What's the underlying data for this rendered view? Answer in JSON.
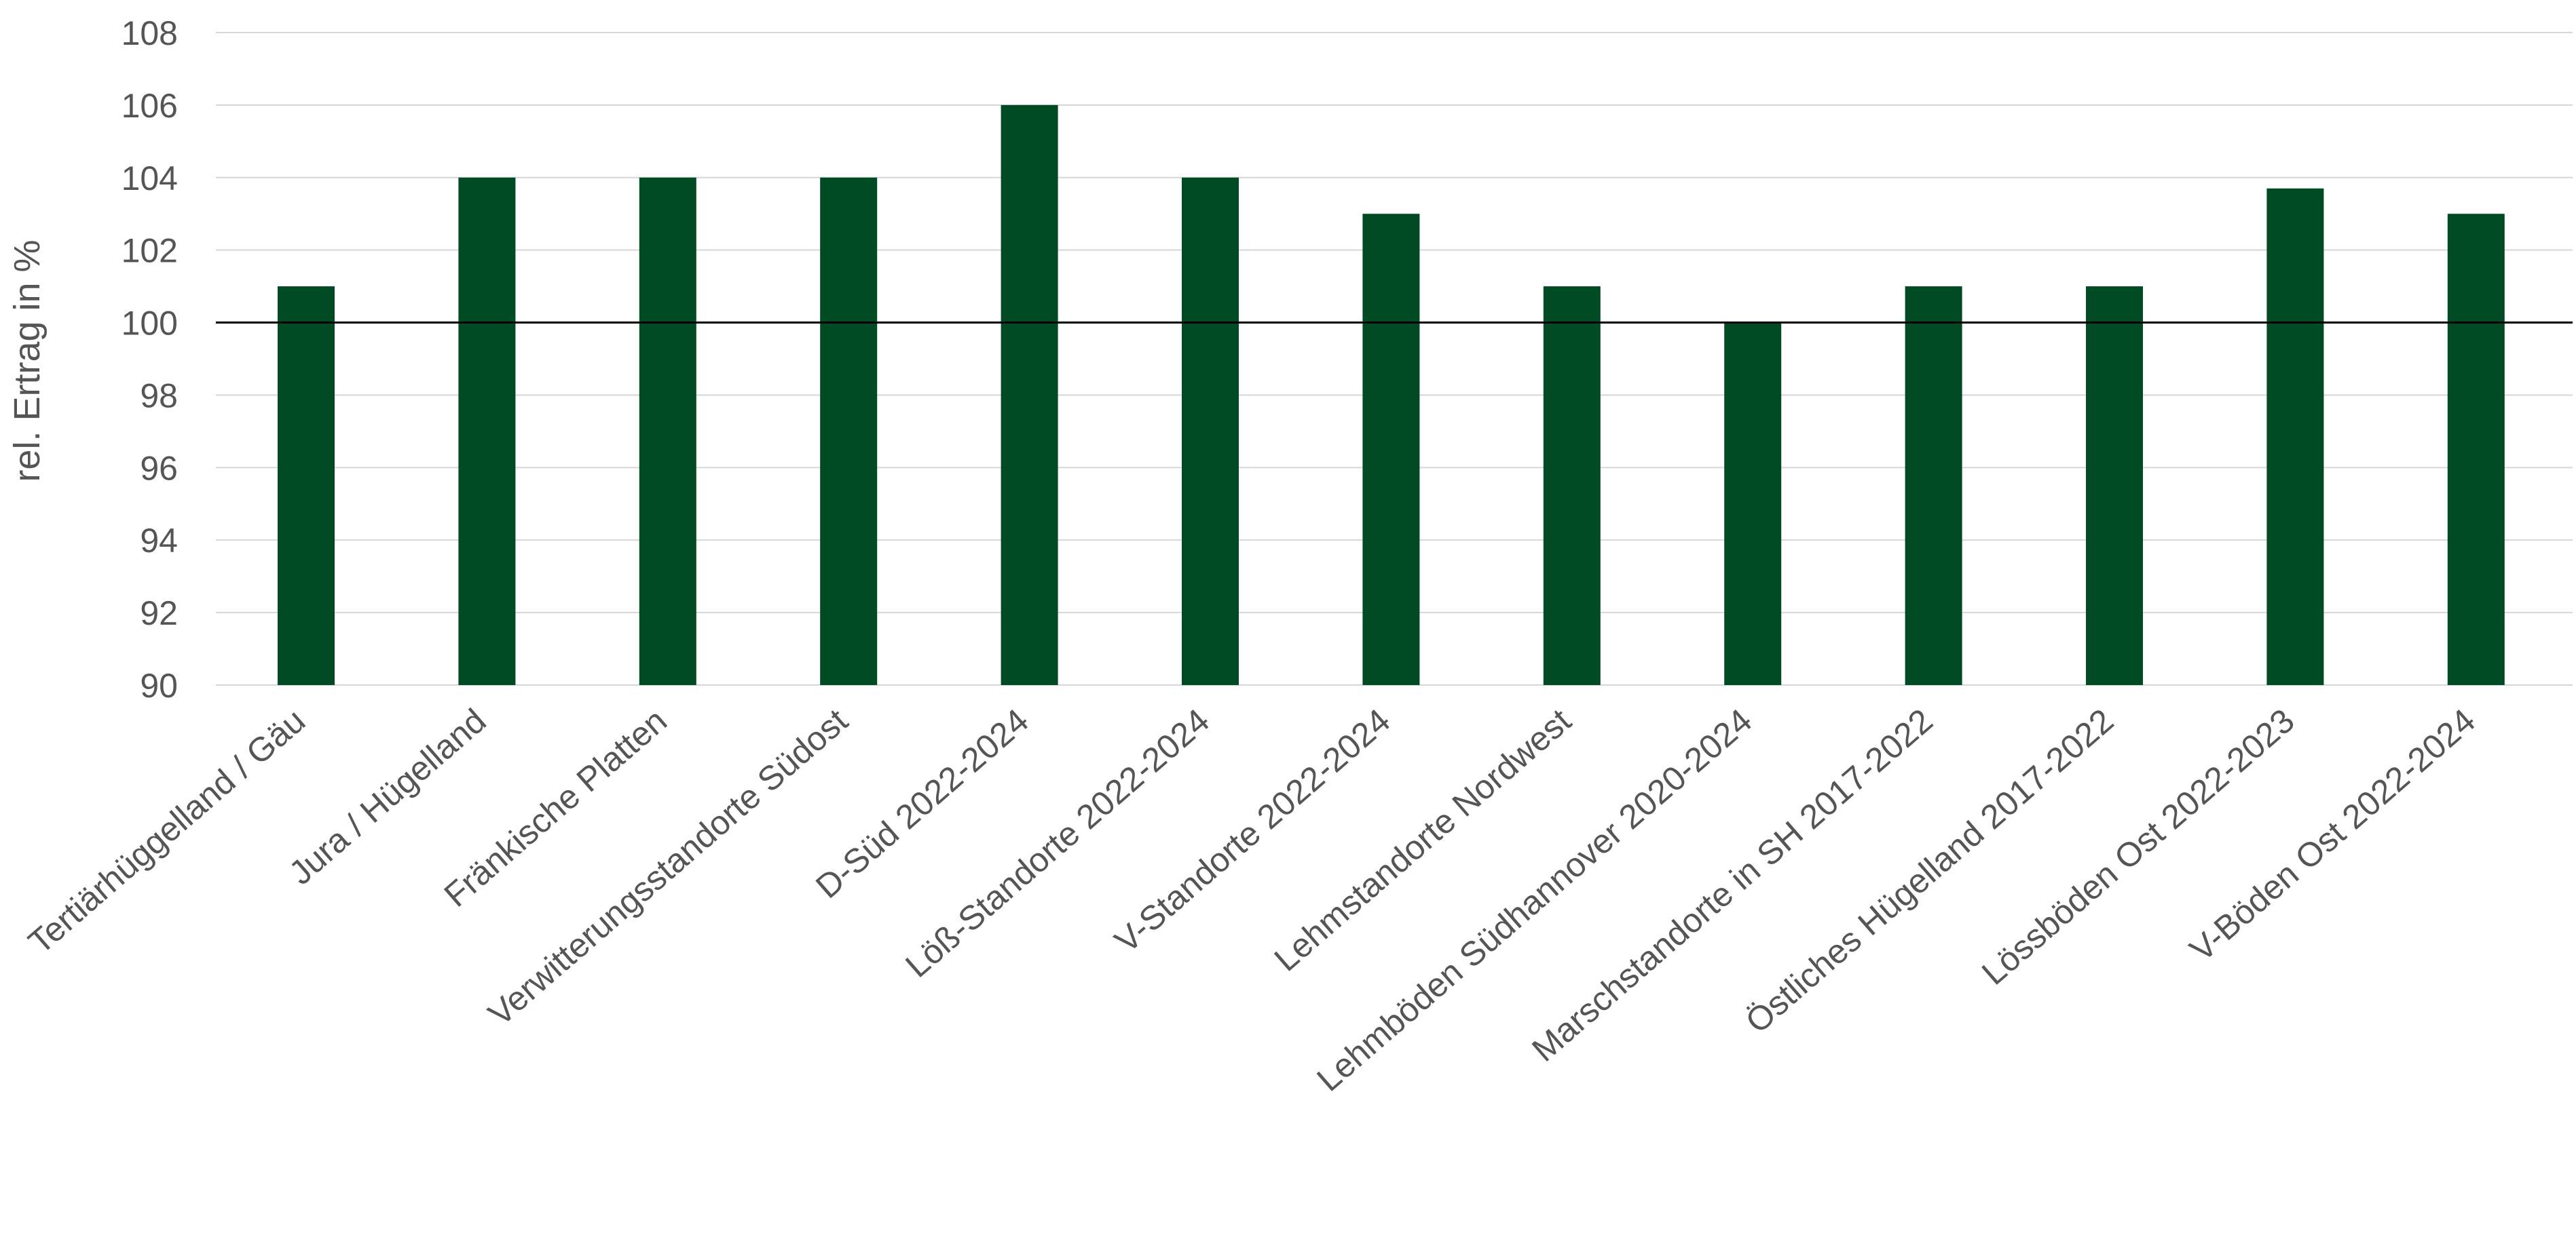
{
  "chart_data": {
    "type": "bar",
    "title": "",
    "xlabel": "",
    "ylabel": "rel. Ertrag in %",
    "categories": [
      "Tertiärhüggelland / Gäu",
      "Jura / Hügelland",
      "Fränkische Platten",
      "Verwitterungsstandorte Südost",
      "D-Süd 2022-2024",
      "Löß-Standorte 2022-2024",
      "V-Standorte 2022-2024",
      "Lehmstandorte Nordwest",
      "Lehmböden Südhannover 2020-2024",
      "Marschstandorte in SH 2017-2022",
      "Östliches Hügelland 2017-2022",
      "Lössböden Ost 2022-2023",
      "V-Böden Ost 2022-2024"
    ],
    "values": [
      101,
      104,
      104,
      104,
      106,
      104,
      103,
      101,
      100,
      101,
      101,
      103.7,
      103
    ],
    "ylim": [
      90,
      108
    ],
    "yticks": [
      "90",
      "92",
      "94",
      "96",
      "98",
      "100",
      "102",
      "104",
      "106",
      "108"
    ],
    "reference_line": 100,
    "grid": true,
    "legend": "none",
    "colors": {
      "bar": "#004b23",
      "grid": "#d6d6d6",
      "reference": "#000000",
      "text": "#555555"
    }
  }
}
